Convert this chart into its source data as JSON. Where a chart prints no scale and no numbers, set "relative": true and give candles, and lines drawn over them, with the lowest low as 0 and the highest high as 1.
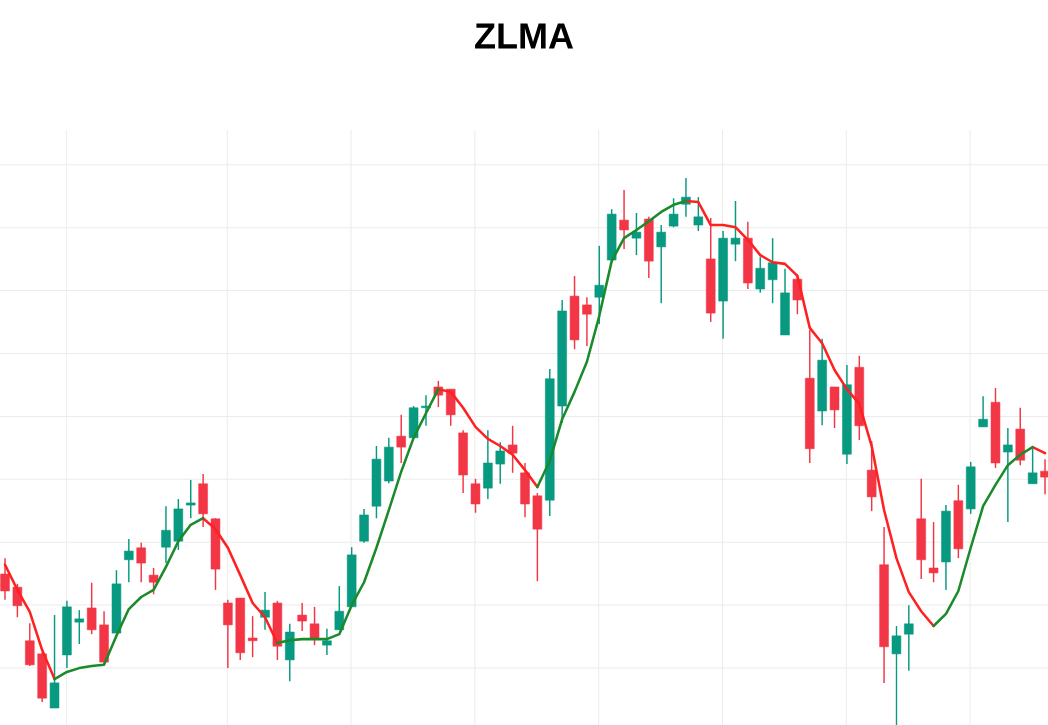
{
  "chart_data": {
    "type": "candlestick",
    "title": "ZLMA",
    "relative": true,
    "grid": true,
    "categories": [
      null,
      null,
      null,
      null,
      null,
      null,
      null,
      null,
      null,
      null,
      null,
      null,
      null,
      null,
      null,
      null,
      null,
      null,
      null,
      null,
      null,
      null,
      null,
      null,
      null,
      null,
      null,
      null,
      null,
      null,
      null,
      null,
      null,
      null,
      null,
      null,
      null,
      null,
      null,
      null,
      null,
      null,
      null,
      null,
      null,
      null,
      null,
      null,
      null,
      null,
      null,
      null,
      null,
      null,
      null,
      null,
      null,
      null,
      null,
      null,
      null,
      null,
      null,
      null,
      null,
      null,
      null,
      null,
      null,
      null,
      null,
      null,
      null,
      null,
      null,
      null,
      null,
      null,
      null,
      null,
      null,
      null,
      null,
      null,
      null
    ],
    "ohlc": [
      [
        0.276,
        0.305,
        0.229,
        0.245
      ],
      [
        0.252,
        0.258,
        0.197,
        0.218
      ],
      [
        0.154,
        0.186,
        0.108,
        0.11
      ],
      [
        0.13,
        0.133,
        0.042,
        0.049
      ],
      [
        0.031,
        0.201,
        0.031,
        0.077
      ],
      [
        0.128,
        0.227,
        0.104,
        0.216
      ],
      [
        0.188,
        0.21,
        0.148,
        0.194
      ],
      [
        0.214,
        0.26,
        0.166,
        0.174
      ],
      [
        0.183,
        0.208,
        0.112,
        0.115
      ],
      [
        0.168,
        0.283,
        0.168,
        0.258
      ],
      [
        0.302,
        0.34,
        0.261,
        0.318
      ],
      [
        0.324,
        0.333,
        0.261,
        0.296
      ],
      [
        0.274,
        0.287,
        0.239,
        0.261
      ],
      [
        0.325,
        0.4,
        0.296,
        0.356
      ],
      [
        0.336,
        0.413,
        0.32,
        0.395
      ],
      [
        0.402,
        0.448,
        0.378,
        0.406
      ],
      [
        0.441,
        0.459,
        0.362,
        0.386
      ],
      [
        0.377,
        0.378,
        0.247,
        0.285
      ],
      [
        0.223,
        0.229,
        0.104,
        0.183
      ],
      [
        0.232,
        0.232,
        0.119,
        0.132
      ],
      [
        0.159,
        0.199,
        0.124,
        0.154
      ],
      [
        0.197,
        0.243,
        0.174,
        0.21
      ],
      [
        0.223,
        0.227,
        0.119,
        0.144
      ],
      [
        0.119,
        0.185,
        0.08,
        0.17
      ],
      [
        0.201,
        0.223,
        0.172,
        0.19
      ],
      [
        0.185,
        0.216,
        0.146,
        0.159
      ],
      [
        0.146,
        0.176,
        0.128,
        0.154
      ],
      [
        0.174,
        0.254,
        0.174,
        0.208
      ],
      [
        0.216,
        0.325,
        0.216,
        0.311
      ],
      [
        0.336,
        0.395,
        0.333,
        0.384
      ],
      [
        0.4,
        0.51,
        0.378,
        0.486
      ],
      [
        0.446,
        0.525,
        0.442,
        0.508
      ],
      [
        0.528,
        0.567,
        0.479,
        0.508
      ],
      [
        0.525,
        0.583,
        0.525,
        0.58
      ],
      [
        0.58,
        0.603,
        0.547,
        0.583
      ],
      [
        0.618,
        0.629,
        0.581,
        0.603
      ],
      [
        0.614,
        0.614,
        0.547,
        0.567
      ],
      [
        0.534,
        0.539,
        0.424,
        0.457
      ],
      [
        0.441,
        0.45,
        0.388,
        0.404
      ],
      [
        0.433,
        0.539,
        0.413,
        0.479
      ],
      [
        0.477,
        0.517,
        0.441,
        0.501
      ],
      [
        0.512,
        0.547,
        0.461,
        0.497
      ],
      [
        0.461,
        0.479,
        0.38,
        0.404
      ],
      [
        0.419,
        0.424,
        0.263,
        0.358
      ],
      [
        0.411,
        0.651,
        0.382,
        0.633
      ],
      [
        0.583,
        0.777,
        0.552,
        0.757
      ],
      [
        0.784,
        0.821,
        0.687,
        0.704
      ],
      [
        0.768,
        0.782,
        0.693,
        0.751
      ],
      [
        0.782,
        0.876,
        0.733,
        0.804
      ],
      [
        0.85,
        0.943,
        0.845,
        0.934
      ],
      [
        0.923,
        0.978,
        0.87,
        0.905
      ],
      [
        0.89,
        0.936,
        0.859,
        0.901
      ],
      [
        0.925,
        0.929,
        0.817,
        0.848
      ],
      [
        0.874,
        0.914,
        0.771,
        0.901
      ],
      [
        0.912,
        0.963,
        0.91,
        0.934
      ],
      [
        0.952,
        1,
        0.929,
        0.965
      ],
      [
        0.914,
        0.965,
        0.903,
        0.929
      ],
      [
        0.852,
        0.927,
        0.737,
        0.753
      ],
      [
        0.775,
        0.903,
        0.706,
        0.89
      ],
      [
        0.879,
        0.958,
        0.848,
        0.89
      ],
      [
        0.89,
        0.92,
        0.797,
        0.808
      ],
      [
        0.797,
        0.856,
        0.79,
        0.835
      ],
      [
        0.814,
        0.89,
        0.771,
        0.845
      ],
      [
        0.713,
        0.834,
        0.713,
        0.79
      ],
      [
        0.815,
        0.824,
        0.751,
        0.777
      ],
      [
        0.634,
        0.722,
        0.479,
        0.505
      ],
      [
        0.574,
        0.706,
        0.548,
        0.667
      ],
      [
        0.618,
        0.618,
        0.543,
        0.576
      ],
      [
        0.495,
        0.658,
        0.477,
        0.622
      ],
      [
        0.654,
        0.675,
        0.521,
        0.547
      ],
      [
        0.466,
        0.519,
        0.391,
        0.417
      ],
      [
        0.293,
        0.362,
        0.077,
        0.143
      ],
      [
        0.13,
        0.181,
        0,
        0.163
      ],
      [
        0.166,
        0.219,
        0.099,
        0.185
      ],
      [
        0.377,
        0.45,
        0.267,
        0.302
      ],
      [
        0.287,
        0.371,
        0.261,
        0.278
      ],
      [
        0.298,
        0.402,
        0.247,
        0.391
      ],
      [
        0.41,
        0.439,
        0.305,
        0.322
      ],
      [
        0.395,
        0.481,
        0.386,
        0.472
      ],
      [
        0.545,
        0.601,
        0.545,
        0.559
      ],
      [
        0.59,
        0.616,
        0.47,
        0.479
      ],
      [
        0.499,
        0.543,
        0.371,
        0.512
      ],
      [
        0.541,
        0.58,
        0.475,
        0.484
      ],
      [
        0.441,
        0.505,
        0.441,
        0.461
      ],
      [
        0.464,
        0.486,
        0.422,
        0.453
      ]
    ],
    "colors": [
      "#f23645",
      "#f23645",
      "#f23645",
      "#f23645",
      "#089981",
      "#089981",
      "#089981",
      "#f23645",
      "#f23645",
      "#089981",
      "#089981",
      "#f23645",
      "#f23645",
      "#089981",
      "#089981",
      "#089981",
      "#f23645",
      "#f23645",
      "#f23645",
      "#f23645",
      "#f23645",
      "#089981",
      "#f23645",
      "#089981",
      "#f23645",
      "#f23645",
      "#089981",
      "#089981",
      "#089981",
      "#089981",
      "#089981",
      "#089981",
      "#f23645",
      "#089981",
      "#089981",
      "#f23645",
      "#f23645",
      "#f23645",
      "#f23645",
      "#089981",
      "#089981",
      "#f23645",
      "#f23645",
      "#f23645",
      "#089981",
      "#089981",
      "#f23645",
      "#f23645",
      "#089981",
      "#089981",
      "#f23645",
      "#089981",
      "#f23645",
      "#089981",
      "#089981",
      "#089981",
      "#089981",
      "#f23645",
      "#089981",
      "#089981",
      "#f23645",
      "#089981",
      "#089981",
      "#089981",
      "#f23645",
      "#f23645",
      "#089981",
      "#f23645",
      "#089981",
      "#f23645",
      "#f23645",
      "#f23645",
      "#089981",
      "#089981",
      "#f23645",
      "#f23645",
      "#089981",
      "#f23645",
      "#089981",
      "#089981",
      "#f23645",
      "#089981",
      "#f23645",
      "#089981",
      "#f23645"
    ],
    "series": [
      {
        "type": "line",
        "color": "#ff2020",
        "values": [
          0.293,
          0.247,
          0.207,
          0.137,
          0.084,
          null,
          null,
          null,
          null,
          null,
          null,
          null,
          null,
          null,
          null,
          null,
          0.378,
          0.358,
          0.324,
          0.274,
          0.223,
          0.197,
          0.15,
          null,
          null,
          null,
          null,
          null,
          null,
          null,
          null,
          null,
          null,
          null,
          null,
          0.614,
          0.609,
          0.58,
          0.545,
          0.523,
          0.51,
          0.494,
          0.466,
          0.435,
          null,
          null,
          null,
          null,
          null,
          null,
          null,
          null,
          null,
          null,
          null,
          0.958,
          0.956,
          0.914,
          0.914,
          0.91,
          0.887,
          0.859,
          0.846,
          0.843,
          0.821,
          0.726,
          0.698,
          0.649,
          0.614,
          0.587,
          0.51,
          0.393,
          0.305,
          0.243,
          0.208,
          0.181,
          null,
          null,
          null,
          null,
          null,
          null,
          null,
          0.508,
          0.497
        ]
      },
      {
        "type": "line",
        "color": "#1a8a2a",
        "values": [
          null,
          null,
          null,
          null,
          0.084,
          0.097,
          0.104,
          0.108,
          0.11,
          0.163,
          0.212,
          0.234,
          0.247,
          0.289,
          0.336,
          0.366,
          0.378,
          null,
          null,
          null,
          null,
          null,
          0.15,
          0.155,
          0.157,
          0.157,
          0.157,
          0.166,
          0.219,
          0.261,
          0.324,
          0.393,
          0.463,
          0.525,
          0.57,
          0.614,
          null,
          null,
          null,
          null,
          null,
          null,
          null,
          0.435,
          0.483,
          0.559,
          0.609,
          0.664,
          0.748,
          0.848,
          0.89,
          0.905,
          0.921,
          0.938,
          0.951,
          0.958,
          null,
          null,
          null,
          null,
          null,
          null,
          null,
          null,
          null,
          null,
          null,
          null,
          null,
          null,
          null,
          null,
          null,
          null,
          null,
          0.181,
          0.203,
          0.245,
          0.324,
          0.4,
          0.439,
          0.475,
          0.494,
          0.508,
          null
        ]
      }
    ]
  }
}
